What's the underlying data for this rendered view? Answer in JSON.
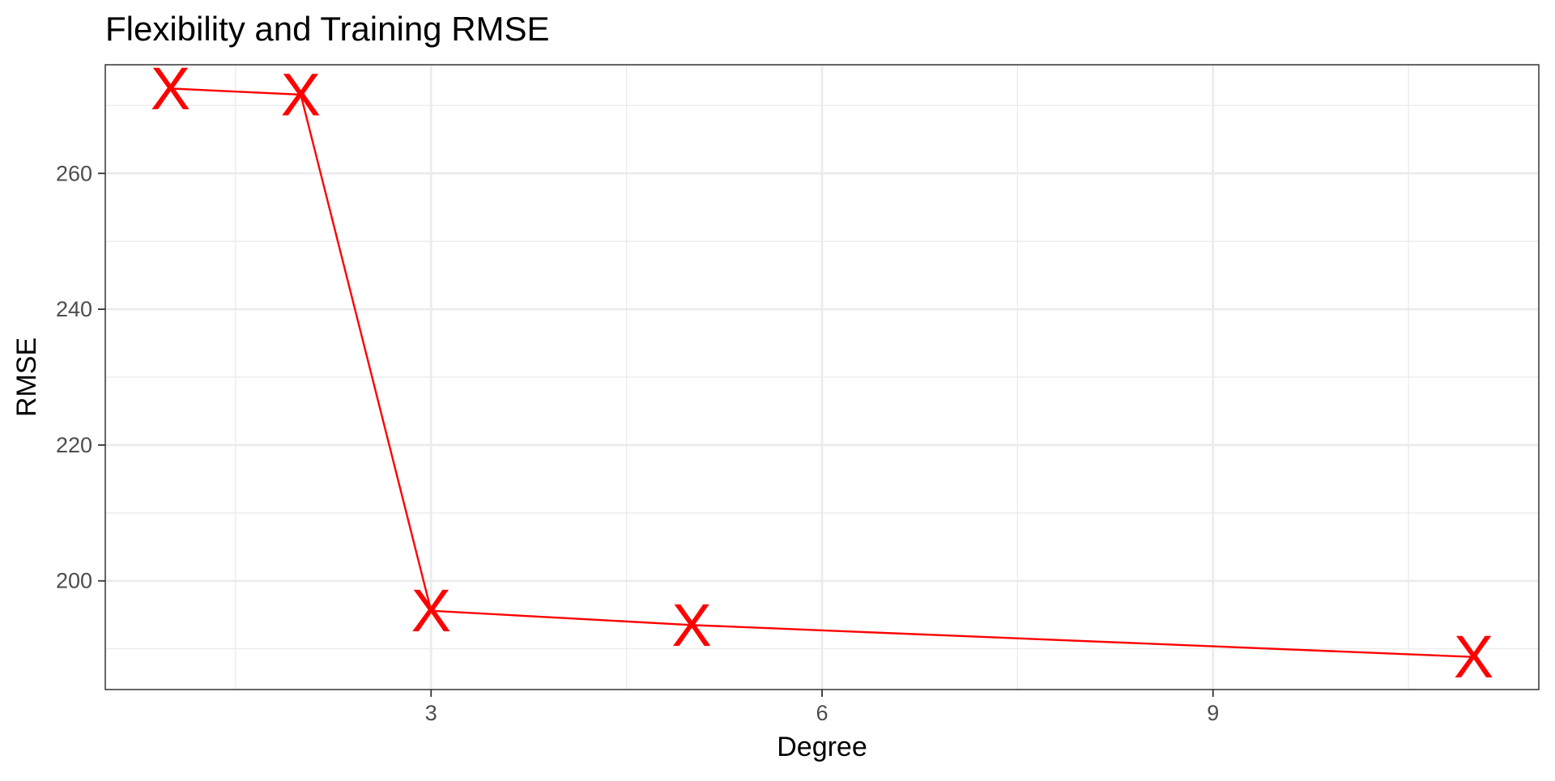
{
  "chart_data": {
    "type": "line",
    "title": "Flexibility and Training RMSE",
    "xlabel": "Degree",
    "ylabel": "RMSE",
    "x": [
      1,
      2,
      3,
      5,
      11
    ],
    "series": [
      {
        "values": [
          272.5,
          271.6,
          195.6,
          193.5,
          188.8
        ]
      }
    ],
    "xlim": [
      0.5,
      11.5
    ],
    "ylim": [
      184,
      276
    ],
    "x_ticks": [
      3,
      6,
      9
    ],
    "x_tick_labels": [
      "3",
      "6",
      "9"
    ],
    "x_minor_ticks": [
      1.5,
      4.5,
      7.5,
      10.5
    ],
    "y_ticks": [
      200,
      220,
      240,
      260
    ],
    "y_tick_labels": [
      "200",
      "220",
      "240",
      "260"
    ],
    "y_minor_ticks": [
      190,
      210,
      230,
      250,
      270
    ],
    "grid": true,
    "legend": "none",
    "marker": "X",
    "colors": {
      "series": "#ff0000",
      "marker": "#ff0000",
      "grid": "#ebebeb",
      "border": "#333333",
      "tick_text": "#4d4d4d",
      "background": "#ffffff"
    }
  }
}
